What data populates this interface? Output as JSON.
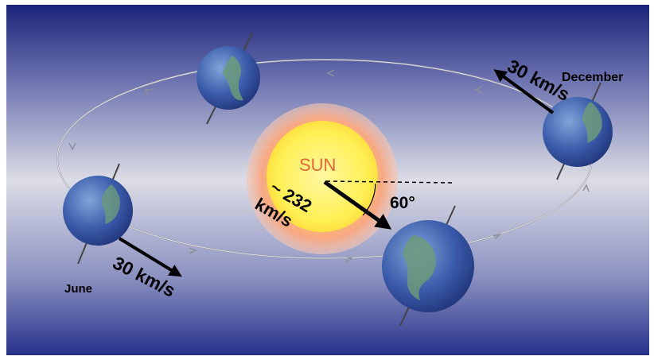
{
  "labels": {
    "sun": "SUN",
    "sun_speed_value": "~ 232",
    "sun_speed_unit": "km/s",
    "angle": "60°",
    "june": "June",
    "december": "December",
    "earth_speed_june": "30 km/s",
    "earth_speed_december": "30 km/s"
  },
  "colors": {
    "background_top": "#1c2780",
    "background_middle": "#d6d8e2",
    "background_bottom": "#2a3590",
    "sun_core": "#fff26a",
    "sun_glow": "#f3a07a",
    "sun_label": "#e2673a",
    "earth_ocean": "#3a5aa8",
    "earth_land": "#6c9a7a"
  },
  "icons": [
    "sun-icon",
    "earth-icon"
  ]
}
